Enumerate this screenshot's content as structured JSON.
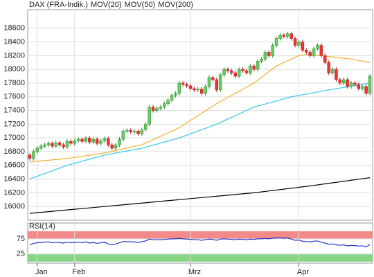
{
  "chart_data": [
    {
      "type": "candlestick",
      "name": "DAX (FRA-Indik.)",
      "name_color": "#e8702a",
      "color_up": "#66cc66",
      "color_down": "#ee3333",
      "categories": [
        null,
        null,
        "Jan",
        null,
        null,
        null,
        null,
        null,
        null,
        null,
        null,
        null,
        "Feb",
        null,
        null,
        null,
        null,
        null,
        null,
        null,
        null,
        null,
        null,
        null,
        null,
        null,
        null,
        null,
        null,
        null,
        null,
        null,
        null,
        null,
        null,
        null,
        null,
        null,
        null,
        null,
        null,
        null,
        null,
        "Mrz",
        null,
        null,
        null,
        null,
        null,
        null,
        null,
        null,
        null,
        null,
        null,
        null,
        null,
        null,
        null,
        null,
        null,
        null,
        null,
        null,
        null,
        null,
        null,
        null,
        null,
        null,
        null,
        null,
        "Apr",
        null,
        null,
        null,
        null,
        null,
        null,
        null,
        null,
        null,
        null,
        null,
        null,
        null,
        null,
        null,
        null,
        null,
        null,
        null
      ],
      "open": [
        16750,
        16700,
        16800,
        16850,
        16880,
        16900,
        16920,
        16880,
        16930,
        16900,
        16870,
        16950,
        16920,
        16960,
        16980,
        16950,
        17000,
        16940,
        16980,
        16920,
        16960,
        16990,
        16900,
        16850,
        16900,
        16980,
        17100,
        17110,
        17090,
        17100,
        17060,
        17120,
        17200,
        17450,
        17400,
        17430,
        17450,
        17500,
        17550,
        17620,
        17650,
        17800,
        17780,
        17760,
        17720,
        17700,
        17710,
        17650,
        17750,
        17880,
        17850,
        17700,
        17920,
        18000,
        17980,
        17950,
        17900,
        18000,
        17980,
        17950,
        18050,
        18000,
        18120,
        18150,
        18250,
        18200,
        18350,
        18450,
        18500,
        18480,
        18520,
        18450,
        18350,
        18400,
        18280,
        18250,
        18200,
        18300,
        18350,
        18200,
        18100,
        17950,
        18000,
        17850,
        17800,
        17850,
        17750,
        17800,
        17780,
        17720,
        17750,
        17650
      ],
      "high": [
        16780,
        16830,
        16880,
        16910,
        16930,
        16950,
        16950,
        16960,
        16960,
        16930,
        16980,
        16980,
        16990,
        17010,
        17010,
        17030,
        17030,
        17010,
        17010,
        16990,
        17020,
        17020,
        16930,
        16930,
        17010,
        17130,
        17140,
        17140,
        17130,
        17130,
        17150,
        17230,
        17480,
        17480,
        17460,
        17480,
        17530,
        17580,
        17650,
        17680,
        17830,
        17830,
        17810,
        17790,
        17750,
        17740,
        17740,
        17780,
        17910,
        17910,
        17880,
        17950,
        18030,
        18030,
        18010,
        17980,
        18030,
        18030,
        18010,
        18080,
        18080,
        18150,
        18180,
        18280,
        18280,
        18380,
        18480,
        18530,
        18530,
        18550,
        18550,
        18480,
        18430,
        18430,
        18310,
        18280,
        18330,
        18380,
        18380,
        18230,
        18130,
        18030,
        18030,
        17880,
        17880,
        17880,
        17830,
        17830,
        17810,
        17780,
        17780,
        17930
      ],
      "low": [
        16670,
        16670,
        16770,
        16820,
        16850,
        16870,
        16850,
        16850,
        16870,
        16840,
        16840,
        16890,
        16890,
        16930,
        16920,
        16920,
        16910,
        16910,
        16890,
        16890,
        16930,
        16870,
        16820,
        16820,
        16870,
        16950,
        17070,
        17060,
        17060,
        17030,
        17030,
        17090,
        17170,
        17370,
        17370,
        17400,
        17420,
        17470,
        17520,
        17590,
        17620,
        17750,
        17730,
        17690,
        17670,
        17670,
        17620,
        17620,
        17720,
        17820,
        17670,
        17670,
        17890,
        17950,
        17920,
        17870,
        17870,
        17950,
        17920,
        17920,
        17970,
        17970,
        18090,
        18120,
        18170,
        18170,
        18320,
        18420,
        18450,
        18450,
        18420,
        18320,
        18320,
        18250,
        18220,
        18170,
        18170,
        18270,
        18170,
        18070,
        17920,
        17920,
        17820,
        17770,
        17770,
        17720,
        17720,
        17750,
        17690,
        17690,
        17620,
        17620
      ],
      "close": [
        16700,
        16800,
        16850,
        16880,
        16900,
        16920,
        16880,
        16930,
        16900,
        16870,
        16950,
        16920,
        16960,
        16980,
        16950,
        17000,
        16940,
        16980,
        16920,
        16960,
        16990,
        16900,
        16850,
        16900,
        16980,
        17100,
        17110,
        17090,
        17100,
        17060,
        17120,
        17200,
        17450,
        17400,
        17430,
        17450,
        17500,
        17550,
        17620,
        17650,
        17800,
        17780,
        17760,
        17720,
        17700,
        17710,
        17650,
        17750,
        17880,
        17850,
        17700,
        17920,
        18000,
        17980,
        17950,
        17900,
        18000,
        17980,
        17950,
        18050,
        18000,
        18120,
        18150,
        18250,
        18200,
        18350,
        18450,
        18500,
        18480,
        18520,
        18450,
        18350,
        18400,
        18280,
        18250,
        18200,
        18300,
        18350,
        18200,
        18100,
        17950,
        18000,
        17850,
        17800,
        17850,
        17750,
        17800,
        17780,
        17720,
        17750,
        17650,
        17900
      ],
      "series": [
        {
          "name": "MOV(20)",
          "color": "#f0b030",
          "values": [
            16650,
            16655,
            16660,
            16665,
            16670,
            16675,
            16680,
            16685,
            16690,
            16695,
            16700,
            16708,
            16716,
            16724,
            16732,
            16740,
            16748,
            16756,
            16764,
            16772,
            16780,
            16792,
            16804,
            16816,
            16828,
            16840,
            16852,
            16864,
            16876,
            16888,
            16900,
            16925,
            16950,
            16975,
            17000,
            17025,
            17050,
            17075,
            17100,
            17125,
            17150,
            17185,
            17220,
            17255,
            17290,
            17325,
            17360,
            17395,
            17430,
            17465,
            17500,
            17530,
            17560,
            17590,
            17620,
            17650,
            17680,
            17710,
            17740,
            17770,
            17800,
            17842,
            17883,
            17925,
            17967,
            18008,
            18050,
            18075,
            18100,
            18125,
            18150,
            18175,
            18200,
            18210,
            18215,
            18215,
            18210,
            18205,
            18200,
            18194,
            18188,
            18181,
            18175,
            18169,
            18163,
            18156,
            18150,
            18140,
            18130,
            18120,
            18110,
            18100
          ]
        },
        {
          "name": "MOV(50)",
          "color": "#30c8e8",
          "values": [
            16400,
            16420,
            16440,
            16460,
            16480,
            16500,
            16520,
            16540,
            16560,
            16580,
            16600,
            16615,
            16630,
            16645,
            16660,
            16675,
            16690,
            16705,
            16720,
            16735,
            16750,
            16760,
            16770,
            16780,
            16790,
            16800,
            16810,
            16820,
            16830,
            16840,
            16850,
            16865,
            16880,
            16895,
            16910,
            16925,
            16940,
            16955,
            16970,
            16985,
            17000,
            17020,
            17040,
            17060,
            17080,
            17100,
            17120,
            17140,
            17160,
            17180,
            17200,
            17225,
            17250,
            17275,
            17300,
            17325,
            17350,
            17375,
            17400,
            17425,
            17450,
            17465,
            17480,
            17495,
            17510,
            17525,
            17540,
            17555,
            17570,
            17585,
            17600,
            17610,
            17620,
            17630,
            17640,
            17650,
            17660,
            17670,
            17680,
            17690,
            17700,
            17709,
            17718,
            17727,
            17736,
            17745,
            17755,
            17764,
            17773,
            17782,
            17791,
            17800
          ]
        },
        {
          "name": "MOV(200)",
          "color": "#000000",
          "values": [
            15900,
            15905,
            15910,
            15915,
            15920,
            15925,
            15930,
            15935,
            15940,
            15945,
            15950,
            15955,
            15960,
            15965,
            15970,
            15975,
            15980,
            15985,
            15990,
            15995,
            16000,
            16005,
            16010,
            16015,
            16020,
            16025,
            16030,
            16035,
            16040,
            16045,
            16050,
            16055,
            16060,
            16065,
            16070,
            16075,
            16080,
            16085,
            16090,
            16095,
            16100,
            16105,
            16110,
            16115,
            16120,
            16125,
            16130,
            16135,
            16140,
            16145,
            16150,
            16155,
            16160,
            16165,
            16170,
            16175,
            16180,
            16185,
            16190,
            16195,
            16200,
            16207,
            16213,
            16220,
            16227,
            16233,
            16240,
            16247,
            16253,
            16260,
            16267,
            16273,
            16280,
            16287,
            16293,
            16300,
            16308,
            16315,
            16323,
            16330,
            16338,
            16345,
            16353,
            16360,
            16368,
            16375,
            16383,
            16390,
            16398,
            16405,
            16413,
            16420
          ]
        }
      ],
      "ylim": [
        15800,
        18870
      ],
      "yticks": [
        16000,
        16200,
        16400,
        16600,
        16800,
        17000,
        17200,
        17400,
        17600,
        17800,
        18000,
        18200,
        18400,
        18600
      ],
      "grid": true
    },
    {
      "type": "line",
      "name": "RSI(14)",
      "color": "#2233cc",
      "values": [
        55,
        60,
        62,
        63,
        64,
        65,
        62,
        64,
        63,
        61,
        64,
        62,
        63,
        64,
        62,
        65,
        61,
        63,
        60,
        62,
        64,
        58,
        55,
        58,
        62,
        66,
        66,
        65,
        65,
        63,
        66,
        68,
        74,
        72,
        72,
        72,
        73,
        74,
        75,
        75,
        76,
        75,
        74,
        73,
        72,
        72,
        70,
        72,
        74,
        73,
        70,
        74,
        75,
        74,
        73,
        72,
        74,
        73,
        72,
        74,
        73,
        75,
        75,
        76,
        75,
        77,
        78,
        78,
        77,
        78,
        74,
        70,
        71,
        67,
        66,
        65,
        67,
        68,
        64,
        61,
        57,
        58,
        55,
        54,
        55,
        52,
        53,
        53,
        51,
        52,
        48,
        56
      ],
      "ylim": [
        -5,
        127
      ],
      "yticks": [
        25,
        75
      ],
      "grid": true,
      "bands": [
        {
          "range": [
            75,
            100
          ],
          "color": "#f28a8a"
        },
        {
          "range": [
            0,
            25
          ],
          "color": "#86d686"
        }
      ]
    }
  ]
}
